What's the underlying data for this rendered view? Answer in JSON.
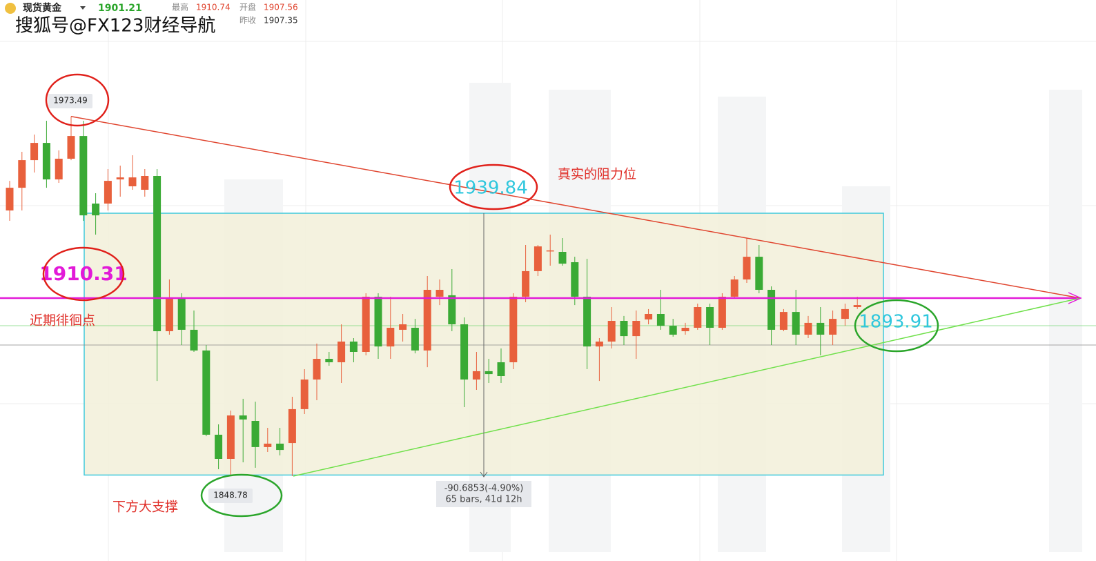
{
  "header": {
    "symbol": "现货黄金",
    "price": 1901.21,
    "high_label": "最高",
    "high": 1910.74,
    "open_label": "开盘",
    "open": 1907.56,
    "prev_close_label": "昨收",
    "prev_close": 1907.35
  },
  "watermark": "搜狐号@FX123财经导航",
  "chart_data": {
    "type": "candlestick",
    "open": [
      1940.8,
      1948.7,
      1958.3,
      1964.3,
      1951.6,
      1958.8,
      1966.7,
      1943.2,
      1943.2,
      1951.6,
      1949.2,
      1948.0,
      1952.8,
      1898.8,
      1910.3,
      1899.3,
      1892.1,
      1862.8,
      1854.4,
      1869.5,
      1867.6,
      1858.5,
      1859.7,
      1859.9,
      1871.7,
      1882.0,
      1889.2,
      1888.0,
      1895.2,
      1891.6,
      1910.8,
      1893.5,
      1899.3,
      1900.0,
      1892.1,
      1910.8,
      1911.3,
      1901.2,
      1882.0,
      1884.9,
      1888.0,
      1888.0,
      1910.8,
      1919.7,
      1926.6,
      1926.4,
      1922.8,
      1910.8,
      1893.5,
      1895.2,
      1902.4,
      1897.1,
      1902.9,
      1904.8,
      1900.7,
      1898.8,
      1900.0,
      1907.2,
      1900.0,
      1910.8,
      1916.8,
      1924.7,
      1913.2,
      1899.3,
      1905.5,
      1897.6,
      1901.7,
      1897.6,
      1903.1,
      1907.2
    ],
    "high": [
      1951.1,
      1961.2,
      1967.2,
      1972.0,
      1961.7,
      1973.49,
      1972.0,
      1946.8,
      1955.2,
      1956.4,
      1960.0,
      1955.2,
      1955.2,
      1916.8,
      1912.0,
      1906.0,
      1894.0,
      1866.4,
      1871.2,
      1875.3,
      1874.3,
      1865.2,
      1865.2,
      1876.0,
      1885.6,
      1894.5,
      1891.6,
      1901.2,
      1896.4,
      1912.0,
      1912.0,
      1910.8,
      1904.8,
      1903.1,
      1918.0,
      1916.8,
      1920.4,
      1903.6,
      1891.6,
      1889.2,
      1892.8,
      1912.0,
      1928.8,
      1928.8,
      1932.4,
      1931.2,
      1924.7,
      1924.0,
      1896.4,
      1907.2,
      1904.1,
      1906.0,
      1906.5,
      1913.2,
      1903.1,
      1901.7,
      1908.4,
      1908.4,
      1912.0,
      1918.0,
      1931.2,
      1928.8,
      1914.4,
      1906.5,
      1913.2,
      1904.1,
      1907.2,
      1906.0,
      1908.4,
      1910.8
    ],
    "low": [
      1937.2,
      1940.8,
      1954.0,
      1948.7,
      1950.4,
      1958.3,
      1937.2,
      1932.4,
      1940.8,
      1945.6,
      1948.0,
      1945.6,
      1881.5,
      1897.6,
      1894.0,
      1891.6,
      1862.3,
      1850.8,
      1848.78,
      1853.2,
      1851.3,
      1856.8,
      1855.6,
      1848.4,
      1870.0,
      1874.8,
      1886.8,
      1880.8,
      1888.0,
      1890.4,
      1889.2,
      1889.2,
      1895.2,
      1891.1,
      1886.3,
      1907.9,
      1898.8,
      1872.4,
      1878.4,
      1880.8,
      1880.8,
      1885.6,
      1908.9,
      1918.0,
      1921.6,
      1921.6,
      1907.9,
      1885.6,
      1881.5,
      1892.8,
      1894.0,
      1889.2,
      1901.2,
      1899.3,
      1896.9,
      1897.6,
      1899.3,
      1894.0,
      1899.3,
      1910.3,
      1915.6,
      1912.0,
      1894.0,
      1898.8,
      1894.0,
      1896.4,
      1890.4,
      1894.0,
      1900.7,
      1906.5
    ],
    "close": [
      1948.7,
      1958.3,
      1964.3,
      1951.6,
      1958.8,
      1966.7,
      1939.1,
      1939.1,
      1951.1,
      1952.3,
      1952.3,
      1952.8,
      1898.8,
      1910.3,
      1899.3,
      1892.1,
      1862.8,
      1854.4,
      1869.5,
      1868.1,
      1858.5,
      1859.7,
      1857.5,
      1871.7,
      1882.0,
      1889.2,
      1888.0,
      1895.2,
      1891.6,
      1910.8,
      1893.5,
      1900.0,
      1901.2,
      1892.1,
      1913.2,
      1913.2,
      1901.2,
      1882.0,
      1884.9,
      1883.9,
      1883.2,
      1910.8,
      1919.7,
      1928.3,
      1926.9,
      1922.3,
      1910.8,
      1893.5,
      1895.2,
      1902.4,
      1897.1,
      1902.4,
      1904.8,
      1900.7,
      1897.6,
      1900.0,
      1907.2,
      1900.0,
      1910.8,
      1916.8,
      1924.7,
      1913.2,
      1899.3,
      1905.5,
      1897.6,
      1901.7,
      1897.6,
      1903.1,
      1906.5,
      1907.9
    ],
    "up_color": "#e8603c",
    "down_color": "#3aaa35",
    "ylim": [
      1822,
      2014
    ],
    "annotations": {
      "high_tag": 1973.49,
      "low_tag": 1848.78,
      "resistance": 1939.84,
      "pivot": 1910.31,
      "current": 1893.91,
      "resistance_text": "真实的阻力位",
      "pivot_text": "近期徘徊点",
      "support_text": "下方大支撑",
      "measure_change": "-90.6853(-4.90%)",
      "measure_bars": "65 bars, 41d 12h"
    }
  }
}
